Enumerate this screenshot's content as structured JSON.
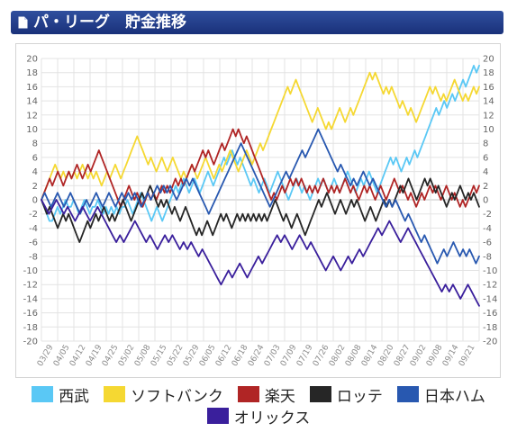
{
  "header": {
    "title": "パ・リーグ　貯金推移"
  },
  "colors": {
    "grid": "#e3e3e3",
    "zero_line": "#c4c4c4",
    "header_bg": "#1f3a86"
  },
  "legend_rows": [
    [
      0,
      1,
      2,
      3,
      4
    ],
    [
      5
    ]
  ],
  "chart_data": {
    "type": "line",
    "ylim": [
      -20,
      20
    ],
    "yticks": [
      20,
      18,
      16,
      14,
      12,
      10,
      8,
      6,
      4,
      2,
      0,
      -2,
      -4,
      -6,
      -8,
      -10,
      -12,
      -14,
      -16,
      -18,
      -20
    ],
    "grid": true,
    "legend_position": "bottom",
    "x_tick_labels": [
      "03/29",
      "04/05",
      "04/12",
      "04/19",
      "04/25",
      "05/02",
      "05/08",
      "05/15",
      "05/22",
      "05/29",
      "06/05",
      "06/12",
      "06/18",
      "06/24",
      "07/03",
      "07/09",
      "07/19",
      "07/26",
      "08/02",
      "08/08",
      "08/14",
      "08/20",
      "08/27",
      "09/02",
      "09/08",
      "09/14",
      "09/21"
    ],
    "series": [
      {
        "name": "西武",
        "color": "#5ac8f5",
        "values": [
          0,
          -1,
          -2,
          -3,
          -3,
          -2,
          -1,
          -2,
          -1,
          0,
          -1,
          -1,
          0,
          -1,
          -2,
          -1,
          0,
          -1,
          -2,
          -1,
          -1,
          0,
          -1,
          -2,
          -1,
          -2,
          -1,
          -2,
          -1,
          -2,
          -1,
          -1,
          0,
          -1,
          -2,
          -1,
          0,
          1,
          0,
          -1,
          -2,
          -3,
          -2,
          -1,
          -2,
          -3,
          -2,
          -1,
          0,
          1,
          2,
          1,
          2,
          3,
          2,
          1,
          2,
          3,
          2,
          1,
          2,
          3,
          4,
          3,
          2,
          3,
          4,
          5,
          6,
          5,
          6,
          7,
          6,
          5,
          6,
          5,
          4,
          3,
          2,
          3,
          2,
          1,
          2,
          3,
          2,
          1,
          2,
          3,
          4,
          3,
          2,
          1,
          0,
          1,
          2,
          3,
          2,
          1,
          2,
          1,
          0,
          1,
          2,
          3,
          2,
          3,
          2,
          1,
          2,
          3,
          2,
          1,
          2,
          3,
          4,
          3,
          2,
          1,
          2,
          3,
          2,
          3,
          4,
          3,
          2,
          1,
          2,
          3,
          4,
          5,
          6,
          5,
          6,
          5,
          4,
          5,
          6,
          5,
          6,
          7,
          6,
          7,
          8,
          9,
          10,
          11,
          12,
          13,
          12,
          13,
          14,
          13,
          14,
          15,
          14,
          15,
          16,
          17,
          16,
          17,
          18,
          19,
          18,
          19
        ]
      },
      {
        "name": "ソフトバンク",
        "color": "#f5d832",
        "values": [
          0,
          1,
          2,
          3,
          4,
          5,
          4,
          3,
          4,
          3,
          4,
          3,
          4,
          3,
          4,
          5,
          4,
          3,
          4,
          3,
          4,
          3,
          2,
          3,
          4,
          3,
          4,
          5,
          4,
          3,
          4,
          5,
          6,
          7,
          8,
          9,
          8,
          7,
          6,
          5,
          6,
          5,
          4,
          5,
          6,
          5,
          4,
          5,
          6,
          5,
          4,
          3,
          4,
          3,
          4,
          5,
          4,
          3,
          4,
          5,
          6,
          5,
          4,
          3,
          4,
          5,
          4,
          5,
          6,
          7,
          6,
          5,
          4,
          5,
          6,
          7,
          6,
          5,
          6,
          7,
          8,
          7,
          8,
          9,
          10,
          11,
          12,
          13,
          14,
          15,
          16,
          15,
          16,
          17,
          16,
          15,
          14,
          13,
          12,
          11,
          12,
          13,
          12,
          11,
          10,
          11,
          10,
          11,
          12,
          13,
          12,
          11,
          12,
          13,
          12,
          13,
          14,
          15,
          16,
          17,
          18,
          17,
          18,
          17,
          16,
          15,
          16,
          15,
          16,
          15,
          14,
          13,
          14,
          13,
          12,
          13,
          12,
          11,
          12,
          13,
          14,
          15,
          16,
          15,
          16,
          15,
          14,
          15,
          14,
          15,
          16,
          17,
          16,
          15,
          14,
          15,
          14,
          15,
          16,
          15,
          16
        ]
      },
      {
        "name": "楽天",
        "color": "#b02525",
        "values": [
          0,
          1,
          2,
          3,
          2,
          3,
          4,
          3,
          2,
          3,
          4,
          3,
          4,
          5,
          4,
          3,
          4,
          5,
          4,
          5,
          6,
          7,
          6,
          5,
          4,
          3,
          2,
          1,
          0,
          -1,
          0,
          1,
          2,
          1,
          0,
          1,
          0,
          -1,
          0,
          1,
          0,
          1,
          0,
          1,
          2,
          1,
          2,
          1,
          2,
          3,
          2,
          3,
          2,
          3,
          4,
          5,
          4,
          5,
          6,
          7,
          6,
          7,
          6,
          5,
          6,
          7,
          8,
          7,
          8,
          9,
          10,
          9,
          10,
          9,
          8,
          9,
          8,
          7,
          6,
          5,
          4,
          3,
          2,
          1,
          0,
          1,
          0,
          1,
          2,
          1,
          2,
          3,
          2,
          3,
          2,
          3,
          2,
          1,
          2,
          1,
          2,
          1,
          2,
          3,
          2,
          1,
          2,
          1,
          2,
          1,
          2,
          3,
          2,
          1,
          2,
          1,
          0,
          1,
          2,
          1,
          2,
          1,
          0,
          1,
          2,
          1,
          0,
          1,
          2,
          3,
          2,
          1,
          2,
          1,
          0,
          1,
          0,
          -1,
          0,
          1,
          0,
          1,
          2,
          1,
          2,
          1,
          0,
          1,
          2,
          1,
          0,
          1,
          0,
          -1,
          0,
          -1,
          0,
          1,
          2,
          1,
          2
        ]
      },
      {
        "name": "ロッテ",
        "color": "#262626",
        "values": [
          0,
          -1,
          -2,
          -1,
          -2,
          -3,
          -4,
          -3,
          -2,
          -3,
          -2,
          -3,
          -4,
          -5,
          -6,
          -5,
          -4,
          -3,
          -4,
          -3,
          -2,
          -3,
          -2,
          -1,
          -2,
          -3,
          -2,
          -3,
          -2,
          -1,
          0,
          -1,
          -2,
          -3,
          -2,
          -1,
          0,
          1,
          0,
          1,
          2,
          1,
          0,
          -1,
          0,
          -1,
          0,
          -1,
          -2,
          -1,
          -2,
          -3,
          -2,
          -1,
          -2,
          -3,
          -4,
          -5,
          -4,
          -5,
          -4,
          -3,
          -4,
          -5,
          -4,
          -3,
          -2,
          -3,
          -2,
          -3,
          -4,
          -3,
          -2,
          -3,
          -2,
          -3,
          -2,
          -3,
          -2,
          -3,
          -2,
          -3,
          -2,
          -3,
          -2,
          -1,
          0,
          -1,
          -2,
          -3,
          -2,
          -3,
          -4,
          -3,
          -2,
          -3,
          -4,
          -5,
          -4,
          -3,
          -2,
          -1,
          0,
          -1,
          0,
          1,
          0,
          -1,
          -2,
          -1,
          0,
          -1,
          -2,
          -1,
          0,
          -1,
          0,
          -1,
          -2,
          -3,
          -2,
          -1,
          -2,
          -3,
          -2,
          -1,
          0,
          -1,
          0,
          -1,
          0,
          1,
          2,
          1,
          2,
          3,
          2,
          1,
          0,
          1,
          2,
          3,
          2,
          3,
          2,
          1,
          2,
          1,
          0,
          -1,
          0,
          1,
          0,
          1,
          2,
          1,
          0,
          1,
          0,
          1,
          0,
          -1
        ]
      },
      {
        "name": "日本ハム",
        "color": "#2858b0",
        "values": [
          0,
          1,
          0,
          -1,
          0,
          1,
          0,
          -1,
          0,
          1,
          0,
          -1,
          -2,
          -1,
          0,
          -1,
          0,
          1,
          0,
          -1,
          0,
          1,
          0,
          -1,
          0,
          1,
          0,
          1,
          0,
          1,
          0,
          -1,
          0,
          1,
          0,
          1,
          2,
          1,
          2,
          1,
          2,
          1,
          0,
          1,
          2,
          3,
          2,
          3,
          2,
          1,
          0,
          -1,
          -2,
          -1,
          0,
          1,
          2,
          3,
          4,
          5,
          6,
          7,
          8,
          7,
          6,
          5,
          4,
          3,
          2,
          1,
          0,
          -1,
          0,
          1,
          2,
          3,
          4,
          3,
          4,
          5,
          6,
          7,
          6,
          7,
          8,
          9,
          10,
          9,
          8,
          7,
          6,
          5,
          4,
          5,
          4,
          3,
          2,
          3,
          2,
          3,
          4,
          3,
          2,
          3,
          2,
          1,
          0,
          -1,
          0,
          -1,
          0,
          -1,
          -2,
          -3,
          -2,
          -3,
          -4,
          -5,
          -6,
          -5,
          -6,
          -7,
          -8,
          -9,
          -8,
          -7,
          -8,
          -7,
          -6,
          -7,
          -8,
          -7,
          -8,
          -7,
          -8,
          -9,
          -8
        ]
      },
      {
        "name": "オリックス",
        "color": "#3a1f9c",
        "values": [
          0,
          -1,
          -2,
          -1,
          0,
          -1,
          -2,
          -1,
          -2,
          -3,
          -2,
          -1,
          -2,
          -3,
          -2,
          -1,
          -2,
          -3,
          -4,
          -5,
          -6,
          -5,
          -6,
          -5,
          -4,
          -3,
          -4,
          -5,
          -6,
          -5,
          -6,
          -7,
          -6,
          -5,
          -6,
          -5,
          -6,
          -7,
          -6,
          -7,
          -6,
          -7,
          -8,
          -7,
          -8,
          -9,
          -10,
          -11,
          -12,
          -11,
          -10,
          -11,
          -10,
          -9,
          -10,
          -11,
          -10,
          -9,
          -8,
          -9,
          -8,
          -7,
          -6,
          -5,
          -6,
          -5,
          -6,
          -7,
          -6,
          -5,
          -6,
          -7,
          -6,
          -7,
          -8,
          -9,
          -10,
          -9,
          -8,
          -9,
          -10,
          -9,
          -8,
          -9,
          -8,
          -7,
          -8,
          -7,
          -6,
          -5,
          -4,
          -5,
          -4,
          -3,
          -4,
          -5,
          -6,
          -5,
          -4,
          -5,
          -6,
          -7,
          -8,
          -9,
          -10,
          -11,
          -12,
          -13,
          -12,
          -13,
          -12,
          -13,
          -14,
          -13,
          -12,
          -13,
          -14,
          -15
        ]
      }
    ]
  }
}
